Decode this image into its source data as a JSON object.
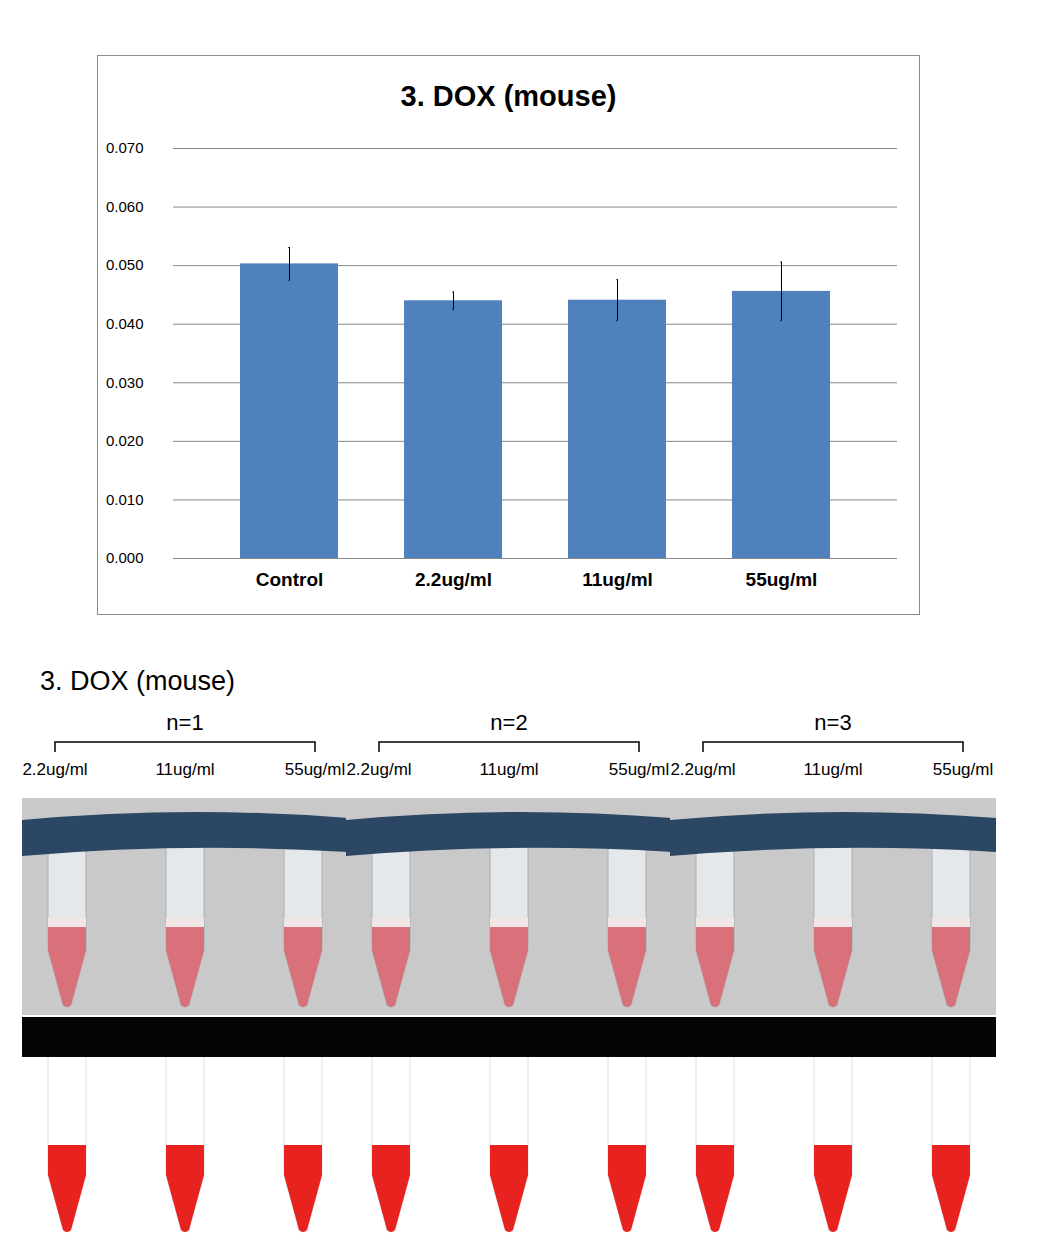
{
  "chart_data": {
    "type": "bar",
    "title": "3. DOX (mouse)",
    "categories": [
      "Control",
      "2.2ug/ml",
      "11ug/ml",
      "55ug/ml"
    ],
    "values": [
      0.0503,
      0.044,
      0.0441,
      0.0456
    ],
    "errors": [
      0.0028,
      0.0015,
      0.0035,
      0.005
    ],
    "color": "#4f81bd",
    "ylim": [
      0,
      0.07
    ],
    "yticks": [
      0,
      0.01,
      0.02,
      0.03,
      0.04,
      0.05,
      0.06,
      0.07
    ],
    "grid": true
  },
  "photo_panel": {
    "title": "3. DOX (mouse)",
    "groups": [
      {
        "label": "n=1",
        "samples": [
          "2.2ug/ml",
          "11ug/ml",
          "55ug/ml"
        ]
      },
      {
        "label": "n=2",
        "samples": [
          "2.2ug/ml",
          "11ug/ml",
          "55ug/ml"
        ]
      },
      {
        "label": "n=3",
        "samples": [
          "2.2ug/ml",
          "11ug/ml",
          "55ug/ml"
        ]
      }
    ]
  }
}
